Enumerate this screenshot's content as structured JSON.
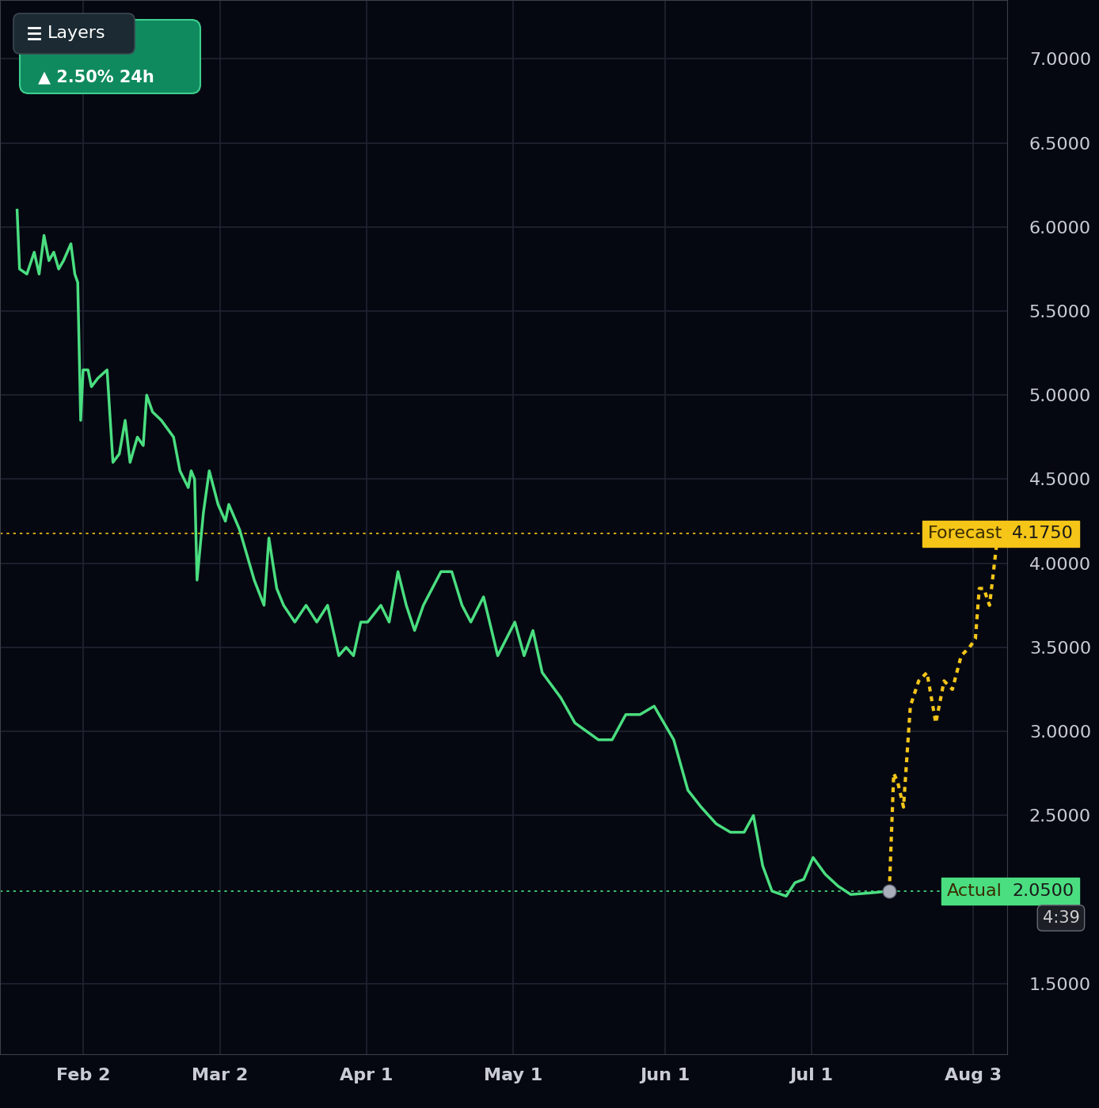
{
  "chart_data": {
    "type": "line",
    "menu_button": "Layers",
    "change_badge": "▲ 2.50% 24h",
    "countdown": "4:39",
    "grid": true,
    "xlim": [
      16,
      222
    ],
    "xticks": [
      {
        "value": 33,
        "label": "Feb 2"
      },
      {
        "value": 61,
        "label": "Mar 2"
      },
      {
        "value": 91,
        "label": "Apr 1"
      },
      {
        "value": 121,
        "label": "May 1"
      },
      {
        "value": 152,
        "label": "Jun 1"
      },
      {
        "value": 182,
        "label": "Jul 1"
      },
      {
        "value": 215,
        "label": "Aug 3"
      }
    ],
    "ylim": [
      1.08,
      7.35
    ],
    "yticks": [
      {
        "value": 1.5,
        "label": "1.5000"
      },
      {
        "value": 2.5,
        "label": "2.5000"
      },
      {
        "value": 3.0,
        "label": "3.0000"
      },
      {
        "value": 3.5,
        "label": "3.5000"
      },
      {
        "value": 4.0,
        "label": "4.0000"
      },
      {
        "value": 4.5,
        "label": "4.5000"
      },
      {
        "value": 5.0,
        "label": "5.0000"
      },
      {
        "value": 5.5,
        "label": "5.5000"
      },
      {
        "value": 6.0,
        "label": "6.0000"
      },
      {
        "value": 6.5,
        "label": "6.5000"
      },
      {
        "value": 7.0,
        "label": "7.0000"
      }
    ],
    "series": [
      {
        "name": "Actual",
        "color": "#4ade80",
        "line_style": "solid",
        "marker": "circle",
        "level": {
          "value": 2.05,
          "label": "2.0500"
        },
        "x": [
          19.5,
          20,
          21.5,
          23,
          24,
          25,
          26,
          27,
          28,
          29,
          30.5,
          31.3,
          31.9,
          32.5,
          33,
          34,
          34.7,
          36,
          37.9,
          39.1,
          40.4,
          41.6,
          42.6,
          44.1,
          45.3,
          46,
          47.2,
          49,
          51.5,
          52.8,
          54.5,
          55.1,
          55.8,
          56.3,
          57.6,
          58.8,
          60.6,
          62.1,
          62.8,
          65,
          68,
          70,
          71,
          72.6,
          74,
          76.3,
          78.6,
          80.8,
          83,
          85.3,
          86.8,
          88.3,
          89.8,
          91.2,
          93.9,
          95.6,
          97.4,
          99.1,
          100.8,
          102.6,
          104.4,
          106.2,
          108.4,
          110.5,
          112.3,
          114.9,
          117.8,
          121.3,
          123.2,
          125,
          126.9,
          130.7,
          133.6,
          138.4,
          141.2,
          144,
          146.9,
          149.8,
          153.8,
          156.7,
          159.4,
          162.5,
          165.4,
          168.2,
          170.1,
          172,
          173.9,
          176.8,
          178.6,
          180.4,
          182.3,
          184.8,
          187.4,
          190,
          194.4,
          197.9
        ],
        "values": [
          6.1,
          5.75,
          5.72,
          5.85,
          5.72,
          5.95,
          5.8,
          5.85,
          5.75,
          5.8,
          5.9,
          5.72,
          5.67,
          4.85,
          5.15,
          5.15,
          5.05,
          5.1,
          5.15,
          4.6,
          4.65,
          4.85,
          4.6,
          4.75,
          4.7,
          5.0,
          4.9,
          4.85,
          4.75,
          4.55,
          4.45,
          4.55,
          4.5,
          3.9,
          4.3,
          4.55,
          4.35,
          4.25,
          4.35,
          4.2,
          3.9,
          3.75,
          4.15,
          3.85,
          3.75,
          3.65,
          3.75,
          3.65,
          3.75,
          3.45,
          3.5,
          3.45,
          3.65,
          3.65,
          3.75,
          3.65,
          3.95,
          3.75,
          3.6,
          3.75,
          3.85,
          3.95,
          3.95,
          3.75,
          3.65,
          3.8,
          3.45,
          3.65,
          3.45,
          3.6,
          3.35,
          3.2,
          3.05,
          2.95,
          2.95,
          3.1,
          3.1,
          3.15,
          2.95,
          2.65,
          2.55,
          2.45,
          2.4,
          2.4,
          2.5,
          2.2,
          2.05,
          2.02,
          2.1,
          2.12,
          2.25,
          2.15,
          2.08,
          2.03,
          2.04,
          2.05
        ]
      },
      {
        "name": "Forecast",
        "color": "#f5c518",
        "line_style": "dotted",
        "level": {
          "value": 4.175,
          "label": "4.1750"
        },
        "x": [
          197.9,
          198.8,
          199.6,
          200.8,
          202.2,
          203.9,
          205.6,
          207.4,
          209.1,
          210.8,
          212.6,
          214.3,
          215.5,
          216.3,
          217.2,
          218.4,
          219.8
        ],
        "values": [
          2.05,
          2.75,
          2.7,
          2.55,
          3.15,
          3.3,
          3.35,
          3.05,
          3.3,
          3.25,
          3.45,
          3.5,
          3.55,
          3.85,
          3.85,
          3.75,
          4.1
        ]
      }
    ]
  }
}
